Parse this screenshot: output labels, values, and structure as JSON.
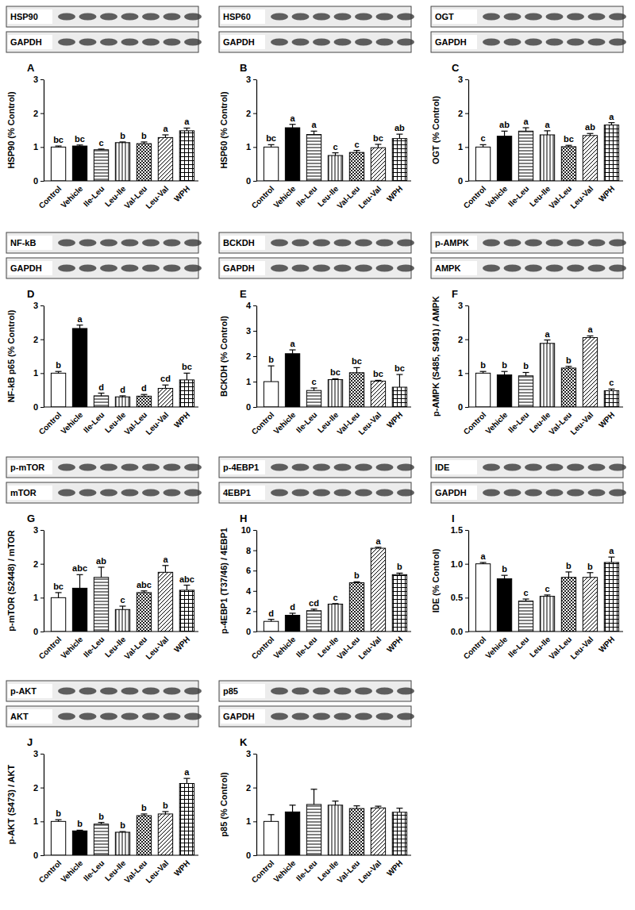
{
  "chart_data": [
    {
      "type": "bar",
      "title": "A",
      "blot_labels": [
        "HSP90",
        "GAPDH"
      ],
      "y_label": "HSP90 (% Control)",
      "categories": [
        "Control",
        "Vehicle",
        "Ile-Leu",
        "Leu-Ile",
        "Val-Leu",
        "Leu-Val",
        "WPH"
      ],
      "values": [
        1.0,
        1.03,
        0.92,
        1.13,
        1.1,
        1.28,
        1.48
      ],
      "errors": [
        0.03,
        0.03,
        0.02,
        0.02,
        0.05,
        0.08,
        0.08
      ],
      "significance": [
        "bc",
        "bc",
        "c",
        "b",
        "b",
        "a",
        "a"
      ],
      "colors": [
        "#ffffff",
        "#000000",
        "#ffffff",
        "#ffffff",
        "#ffffff",
        "#ffffff",
        "#ffffff"
      ],
      "ylim": [
        0,
        3
      ],
      "yticks": [
        0,
        1,
        2,
        3
      ]
    },
    {
      "type": "bar",
      "title": "B",
      "blot_labels": [
        "HSP60",
        "GAPDH"
      ],
      "y_label": "HSP60 (% Control)",
      "categories": [
        "Control",
        "Vehicle",
        "Ile-Leu",
        "Leu-Ile",
        "Val-Leu",
        "Leu-Val",
        "WPH"
      ],
      "values": [
        1.0,
        1.57,
        1.37,
        0.75,
        0.84,
        0.98,
        1.25
      ],
      "errors": [
        0.07,
        0.1,
        0.1,
        0.08,
        0.06,
        0.1,
        0.13
      ],
      "significance": [
        "bc",
        "a",
        "a",
        "c",
        "c",
        "bc",
        "ab"
      ],
      "colors": [
        "#ffffff",
        "#000000",
        "#ffffff",
        "#ffffff",
        "#ffffff",
        "#ffffff",
        "#ffffff"
      ],
      "ylim": [
        0,
        3
      ],
      "yticks": [
        0,
        1,
        2,
        3
      ]
    },
    {
      "type": "bar",
      "title": "C",
      "blot_labels": [
        "OGT",
        "GAPDH"
      ],
      "y_label": "OGT (% Control)",
      "categories": [
        "Control",
        "Vehicle",
        "Ile-Leu",
        "Leu-Ile",
        "Val-Leu",
        "Leu-Val",
        "WPH"
      ],
      "values": [
        1.0,
        1.32,
        1.47,
        1.36,
        1.01,
        1.34,
        1.65
      ],
      "errors": [
        0.07,
        0.15,
        0.1,
        0.12,
        0.04,
        0.06,
        0.07
      ],
      "significance": [
        "c",
        "ab",
        "a",
        "a",
        "bc",
        "ab",
        "a"
      ],
      "colors": [
        "#ffffff",
        "#000000",
        "#ffffff",
        "#ffffff",
        "#ffffff",
        "#ffffff",
        "#ffffff"
      ],
      "ylim": [
        0,
        3
      ],
      "yticks": [
        0,
        1,
        2,
        3
      ]
    },
    {
      "type": "bar",
      "title": "D",
      "blot_labels": [
        "NF-kB",
        "GAPDH"
      ],
      "y_label": "NF-kB p65 (% Control)",
      "categories": [
        "Control",
        "Vehicle",
        "Ile-Leu",
        "Leu-Ile",
        "Val-Leu",
        "Leu-Val",
        "WPH"
      ],
      "values": [
        1.0,
        2.32,
        0.33,
        0.3,
        0.32,
        0.55,
        0.8
      ],
      "errors": [
        0.05,
        0.1,
        0.08,
        0.03,
        0.05,
        0.1,
        0.2
      ],
      "significance": [
        "b",
        "a",
        "d",
        "d",
        "d",
        "cd",
        "bc"
      ],
      "colors": [
        "#ffffff",
        "#000000",
        "#ffffff",
        "#ffffff",
        "#ffffff",
        "#ffffff",
        "#ffffff"
      ],
      "ylim": [
        0,
        3
      ],
      "yticks": [
        0,
        1,
        2,
        3
      ]
    },
    {
      "type": "bar",
      "title": "E",
      "blot_labels": [
        "BCKDH",
        "GAPDH"
      ],
      "y_label": "BCKDH (% Control)",
      "categories": [
        "Control",
        "Vehicle",
        "Ile-Leu",
        "Leu-Ile",
        "Val-Leu",
        "Leu-Val",
        "WPH"
      ],
      "values": [
        1.0,
        2.1,
        0.65,
        1.08,
        1.35,
        1.02,
        0.78
      ],
      "errors": [
        0.62,
        0.15,
        0.1,
        0.03,
        0.2,
        0.03,
        0.5
      ],
      "significance": [
        "b",
        "a",
        "c",
        "bc",
        "bc",
        "bc",
        "bc"
      ],
      "colors": [
        "#ffffff",
        "#000000",
        "#ffffff",
        "#ffffff",
        "#ffffff",
        "#ffffff",
        "#ffffff"
      ],
      "ylim": [
        0,
        4
      ],
      "yticks": [
        0,
        1,
        2,
        3,
        4
      ]
    },
    {
      "type": "bar",
      "title": "F",
      "blot_labels": [
        "p-AMPK",
        "AMPK"
      ],
      "y_label": "p-AMPK (S485, S491) / AMPK",
      "categories": [
        "Control",
        "Vehicle",
        "Ile-Leu",
        "Leu-Ile",
        "Val-Leu",
        "Leu-Val",
        "WPH"
      ],
      "values": [
        1.0,
        0.95,
        0.92,
        1.88,
        1.15,
        2.05,
        0.48
      ],
      "errors": [
        0.05,
        0.1,
        0.1,
        0.1,
        0.05,
        0.05,
        0.05
      ],
      "significance": [
        "b",
        "b",
        "b",
        "a",
        "b",
        "a",
        "c"
      ],
      "colors": [
        "#ffffff",
        "#000000",
        "#ffffff",
        "#ffffff",
        "#ffffff",
        "#ffffff",
        "#ffffff"
      ],
      "ylim": [
        0,
        3
      ],
      "yticks": [
        0,
        1,
        2,
        3
      ]
    },
    {
      "type": "bar",
      "title": "G",
      "blot_labels": [
        "p-mTOR",
        "mTOR"
      ],
      "y_label": "p-mTOR (S2448) / mTOR",
      "categories": [
        "Control",
        "Vehicle",
        "Ile-Leu",
        "Leu-Ile",
        "Val-Leu",
        "Leu-Val",
        "WPH"
      ],
      "values": [
        1.0,
        1.28,
        1.6,
        0.65,
        1.15,
        1.75,
        1.22
      ],
      "errors": [
        0.15,
        0.4,
        0.3,
        0.1,
        0.05,
        0.2,
        0.15
      ],
      "significance": [
        "bc",
        "abc",
        "ab",
        "c",
        "abc",
        "a",
        "abc"
      ],
      "colors": [
        "#ffffff",
        "#000000",
        "#ffffff",
        "#ffffff",
        "#ffffff",
        "#ffffff",
        "#ffffff"
      ],
      "ylim": [
        0,
        3
      ],
      "yticks": [
        0,
        1,
        2,
        3
      ]
    },
    {
      "type": "bar",
      "title": "H",
      "blot_labels": [
        "p-4EBP1",
        "4EBP1"
      ],
      "y_label": "p-4EBP1 (T37/46) / 4EBP1",
      "categories": [
        "Control",
        "Vehicle",
        "Ile-Leu",
        "Leu-Ile",
        "Val-Leu",
        "Leu-Val",
        "WPH"
      ],
      "values": [
        1.0,
        1.6,
        2.05,
        2.7,
        4.8,
        8.2,
        5.6
      ],
      "errors": [
        0.2,
        0.2,
        0.15,
        0.05,
        0.1,
        0.1,
        0.15
      ],
      "significance": [
        "d",
        "d",
        "cd",
        "c",
        "b",
        "a",
        "b"
      ],
      "colors": [
        "#ffffff",
        "#000000",
        "#ffffff",
        "#ffffff",
        "#ffffff",
        "#ffffff",
        "#ffffff"
      ],
      "ylim": [
        0,
        10
      ],
      "yticks": [
        0,
        2,
        4,
        6,
        8,
        10
      ]
    },
    {
      "type": "bar",
      "title": "I",
      "blot_labels": [
        "IDE",
        "GAPDH"
      ],
      "y_label": "IDE (% Control)",
      "categories": [
        "Control",
        "Vehicle",
        "Ile-Leu",
        "Leu-Ile",
        "Val-Leu",
        "Leu-Val",
        "WPH"
      ],
      "values": [
        1.0,
        0.78,
        0.45,
        0.52,
        0.8,
        0.8,
        1.02
      ],
      "errors": [
        0.02,
        0.05,
        0.03,
        0.02,
        0.08,
        0.07,
        0.08
      ],
      "significance": [
        "a",
        "b",
        "c",
        "c",
        "b",
        "b",
        "a"
      ],
      "colors": [
        "#ffffff",
        "#000000",
        "#ffffff",
        "#ffffff",
        "#ffffff",
        "#ffffff",
        "#ffffff"
      ],
      "ylim": [
        0,
        1.5
      ],
      "yticks": [
        {
          "value": 0,
          "label": "0.0"
        },
        {
          "value": 0.5,
          "label": "0.5"
        },
        {
          "value": 1,
          "label": "1.0"
        },
        {
          "value": 1.5,
          "label": "1.5"
        }
      ]
    },
    {
      "type": "bar",
      "title": "J",
      "blot_labels": [
        "p-AKT",
        "AKT"
      ],
      "y_label": "p-AKT (S473) / AKT",
      "categories": [
        "Control",
        "Vehicle",
        "Ile-Leu",
        "Leu-Ile",
        "Val-Leu",
        "Leu-Val",
        "WPH"
      ],
      "values": [
        1.0,
        0.72,
        0.92,
        0.68,
        1.17,
        1.22,
        2.12
      ],
      "errors": [
        0.05,
        0.02,
        0.05,
        0.02,
        0.05,
        0.07,
        0.15
      ],
      "significance": [
        "b",
        "b",
        "b",
        "b",
        "b",
        "b",
        "a"
      ],
      "colors": [
        "#ffffff",
        "#000000",
        "#ffffff",
        "#ffffff",
        "#ffffff",
        "#ffffff",
        "#ffffff"
      ],
      "ylim": [
        0,
        3
      ],
      "yticks": [
        0,
        1,
        2,
        3
      ]
    },
    {
      "type": "bar",
      "title": "K",
      "blot_labels": [
        "p85",
        "GAPDH"
      ],
      "y_label": "p85 (% Control)",
      "categories": [
        "Control",
        "Vehicle",
        "Ile-Leu",
        "Leu-Ile",
        "Val-Leu",
        "Leu-Val",
        "WPH"
      ],
      "values": [
        1.0,
        1.28,
        1.5,
        1.48,
        1.38,
        1.4,
        1.27
      ],
      "errors": [
        0.2,
        0.2,
        0.45,
        0.12,
        0.08,
        0.05,
        0.12
      ],
      "colors": [
        "#ffffff",
        "#000000",
        "#ffffff",
        "#ffffff",
        "#ffffff",
        "#ffffff",
        "#ffffff"
      ],
      "ylim": [
        0,
        3
      ],
      "yticks": [
        0,
        1,
        2,
        3
      ]
    }
  ]
}
